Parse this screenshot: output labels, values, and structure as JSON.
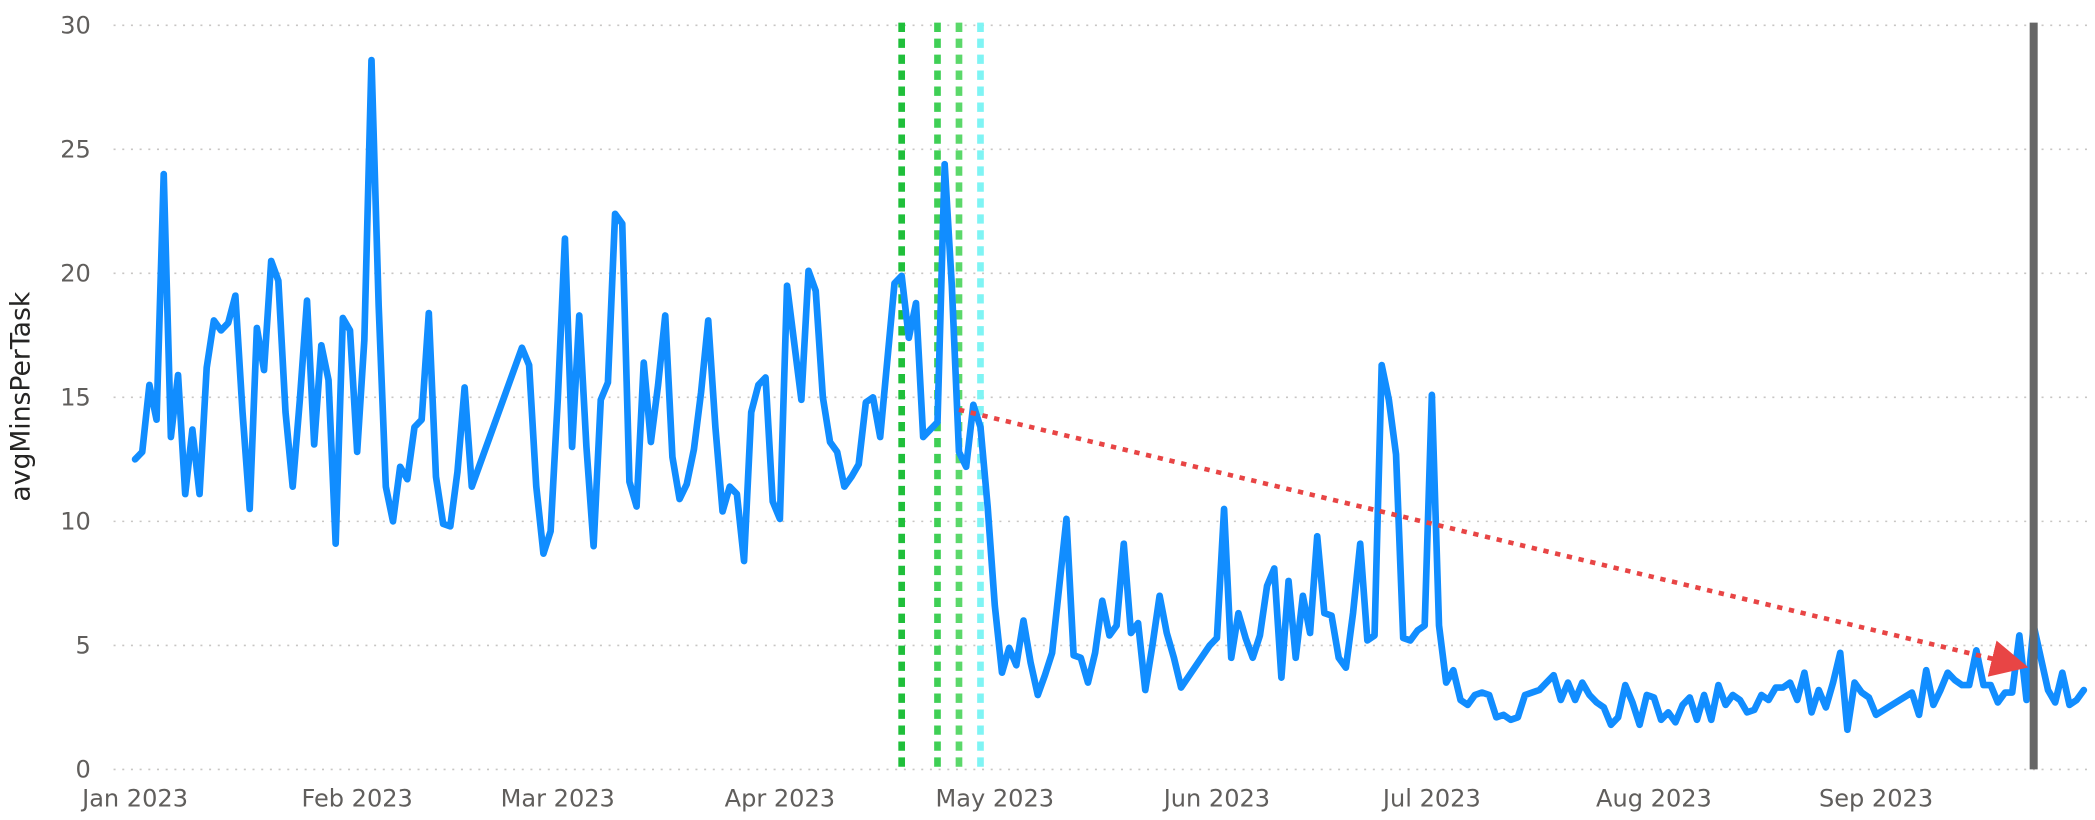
{
  "chart_data": {
    "type": "line",
    "y_label": "avgMinsPerTask",
    "xlim": [
      -2,
      274
    ],
    "xticks": [
      {
        "value": 1,
        "label": "Jan 2023"
      },
      {
        "value": 32,
        "label": "Feb 2023"
      },
      {
        "value": 60,
        "label": "Mar 2023"
      },
      {
        "value": 91,
        "label": "Apr 2023"
      },
      {
        "value": 121,
        "label": "May 2023"
      },
      {
        "value": 152,
        "label": "Jun 2023"
      },
      {
        "value": 182,
        "label": "Jul 2023"
      },
      {
        "value": 213,
        "label": "Aug 2023"
      },
      {
        "value": 244,
        "label": "Sep 2023"
      }
    ],
    "ylim": [
      0,
      30
    ],
    "yticks": [
      0,
      5,
      10,
      15,
      20,
      25,
      30
    ],
    "grid": true,
    "x": [
      1,
      2,
      3,
      4,
      5,
      6,
      7,
      8,
      9,
      10,
      11,
      12,
      13,
      14,
      15,
      16,
      17,
      18,
      19,
      20,
      21,
      22,
      23,
      24,
      25,
      26,
      27,
      28,
      29,
      30,
      31,
      32,
      33,
      34,
      35,
      36,
      37,
      38,
      39,
      40,
      41,
      42,
      43,
      44,
      45,
      46,
      47,
      48,
      55,
      56,
      57,
      58,
      59,
      60,
      61,
      62,
      63,
      64,
      65,
      66,
      67,
      68,
      69,
      70,
      71,
      72,
      73,
      74,
      75,
      76,
      77,
      78,
      79,
      80,
      81,
      82,
      83,
      84,
      85,
      86,
      87,
      88,
      89,
      90,
      91,
      92,
      93,
      94,
      95,
      96,
      97,
      98,
      99,
      100,
      101,
      102,
      103,
      104,
      105,
      106,
      107,
      108,
      109,
      110,
      111,
      112,
      113,
      114,
      115,
      116,
      117,
      118,
      119,
      120,
      121,
      122,
      123,
      124,
      125,
      126,
      127,
      128,
      129,
      130,
      131,
      132,
      133,
      134,
      135,
      136,
      137,
      138,
      139,
      140,
      141,
      142,
      143,
      144,
      145,
      146,
      147,
      151,
      152,
      153,
      154,
      155,
      156,
      157,
      158,
      159,
      160,
      161,
      162,
      163,
      164,
      165,
      166,
      167,
      168,
      169,
      170,
      171,
      172,
      173,
      174,
      175,
      176,
      177,
      178,
      179,
      180,
      181,
      182,
      183,
      184,
      185,
      186,
      187,
      188,
      189,
      190,
      191,
      192,
      193,
      194,
      195,
      196,
      197,
      198,
      199,
      200,
      201,
      202,
      203,
      204,
      205,
      206,
      207,
      208,
      209,
      210,
      211,
      212,
      213,
      214,
      215,
      216,
      217,
      218,
      219,
      220,
      221,
      222,
      223,
      224,
      225,
      226,
      227,
      228,
      229,
      230,
      231,
      232,
      233,
      234,
      235,
      236,
      237,
      238,
      239,
      240,
      241,
      242,
      243,
      244,
      249,
      250,
      251,
      252,
      253,
      254,
      255,
      256,
      257,
      258,
      259,
      260,
      261,
      262,
      263,
      264,
      265,
      266,
      267,
      268,
      269,
      270,
      271,
      272,
      273
    ],
    "series": [
      {
        "color": "#118dff",
        "values": [
          12.5,
          12.8,
          15.5,
          14.1,
          24.0,
          13.4,
          15.9,
          11.1,
          13.7,
          11.1,
          16.2,
          18.1,
          17.7,
          18.0,
          19.1,
          14.4,
          10.5,
          17.8,
          16.1,
          20.5,
          19.7,
          14.4,
          11.4,
          14.9,
          18.9,
          13.1,
          17.1,
          15.7,
          9.1,
          18.2,
          17.7,
          12.8,
          17.3,
          28.6,
          18.7,
          11.4,
          10.0,
          12.2,
          11.7,
          13.8,
          14.1,
          18.4,
          11.8,
          9.9,
          9.8,
          12.0,
          15.4,
          11.4,
          17.0,
          16.3,
          11.4,
          8.7,
          9.6,
          14.9,
          21.4,
          13.0,
          18.3,
          13.0,
          9.0,
          14.9,
          15.6,
          22.4,
          22.0,
          11.6,
          10.6,
          16.4,
          13.2,
          15.5,
          18.3,
          12.6,
          10.9,
          11.5,
          12.9,
          15.2,
          18.1,
          13.8,
          10.4,
          11.4,
          11.1,
          8.4,
          14.4,
          15.5,
          15.8,
          10.8,
          10.1,
          19.5,
          17.2,
          14.9,
          20.1,
          19.3,
          15.0,
          13.2,
          12.8,
          11.4,
          11.8,
          12.3,
          14.8,
          15.0,
          13.4,
          16.5,
          19.6,
          19.9,
          17.4,
          18.8,
          13.4,
          13.7,
          14.0,
          24.4,
          19.5,
          12.8,
          12.2,
          14.7,
          13.8,
          10.6,
          6.6,
          3.9,
          4.9,
          4.2,
          6.0,
          4.3,
          3.0,
          3.8,
          4.7,
          7.4,
          10.1,
          4.6,
          4.5,
          3.5,
          4.7,
          6.8,
          5.4,
          5.8,
          9.1,
          5.5,
          5.9,
          3.2,
          5.0,
          7.0,
          5.5,
          4.5,
          3.3,
          5.0,
          5.3,
          10.5,
          4.5,
          6.3,
          5.3,
          4.5,
          5.4,
          7.4,
          8.1,
          3.7,
          7.6,
          4.5,
          7.0,
          5.5,
          9.4,
          6.3,
          6.2,
          4.5,
          4.1,
          6.3,
          9.1,
          5.2,
          5.4,
          16.3,
          14.9,
          12.7,
          5.3,
          5.2,
          5.6,
          5.8,
          15.1,
          5.8,
          3.5,
          4.0,
          2.8,
          2.6,
          3.0,
          3.1,
          3.0,
          2.1,
          2.2,
          2.0,
          2.1,
          3.0,
          3.1,
          3.2,
          3.5,
          3.8,
          2.8,
          3.5,
          2.8,
          3.5,
          3.0,
          2.7,
          2.5,
          1.8,
          2.1,
          3.4,
          2.7,
          1.8,
          3.0,
          2.9,
          2.0,
          2.3,
          1.9,
          2.6,
          2.9,
          2.0,
          3.0,
          2.0,
          3.4,
          2.6,
          3.0,
          2.8,
          2.3,
          2.4,
          3.0,
          2.8,
          3.3,
          3.3,
          3.5,
          2.8,
          3.9,
          2.3,
          3.2,
          2.5,
          3.5,
          4.7,
          1.6,
          3.5,
          3.1,
          2.9,
          2.2,
          3.1,
          2.2,
          4.0,
          2.6,
          3.2,
          3.9,
          3.6,
          3.4,
          3.4,
          4.8,
          3.4,
          3.4,
          2.7,
          3.1,
          3.1,
          5.4,
          2.8,
          5.8,
          4.5,
          3.2,
          2.7,
          3.9,
          2.6,
          2.8,
          3.2
        ]
      }
    ],
    "reference_lines": [
      {
        "x": 108,
        "color": "#1fbf3a",
        "dashed": true
      },
      {
        "x": 113,
        "color": "#3fcf55",
        "dashed": true
      },
      {
        "x": 116,
        "color": "#5bd86a",
        "dashed": true
      },
      {
        "x": 119,
        "color": "#7ff4f4",
        "dashed": true
      },
      {
        "x": 266,
        "color": "#666666",
        "dashed": false
      }
    ],
    "trend_arrow": {
      "x": [
        116,
        264
      ],
      "y": [
        14.5,
        4.2
      ],
      "color": "#e84545"
    }
  }
}
